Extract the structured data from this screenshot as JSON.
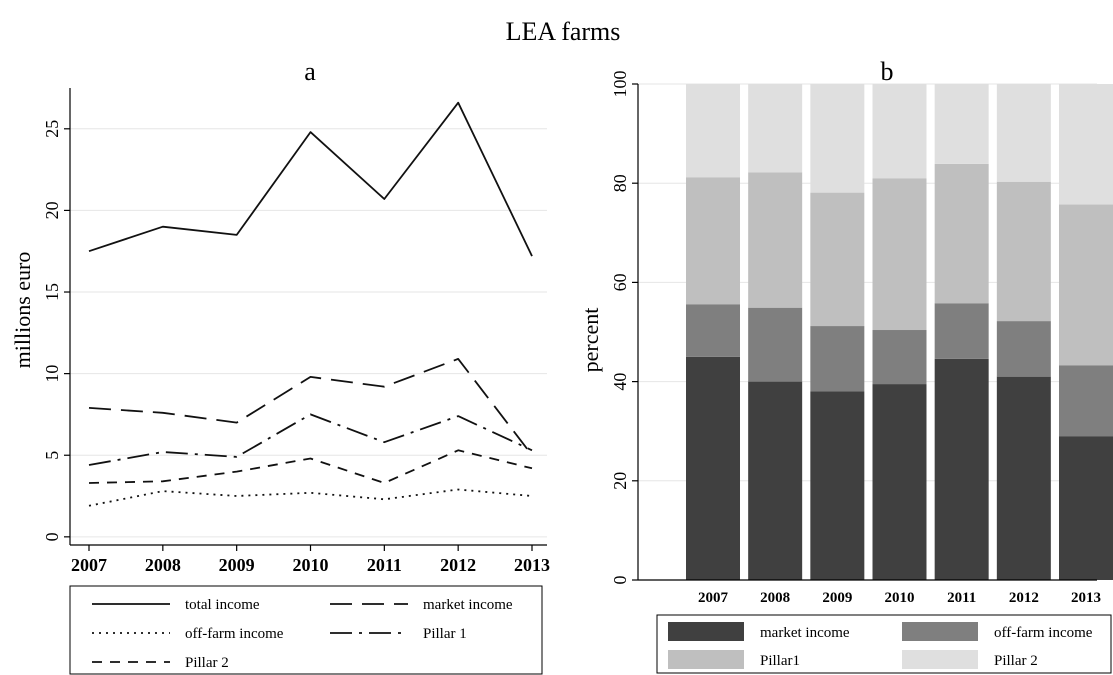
{
  "title": "LEA farms",
  "chart_data": [
    {
      "panel": "a",
      "type": "line",
      "ylabel": "millions euro",
      "xlabel": "",
      "x": [
        "2007",
        "2008",
        "2009",
        "2010",
        "2011",
        "2012",
        "2013"
      ],
      "ylim": [
        -0.5,
        27.5
      ],
      "yticks": [
        0,
        5,
        10,
        15,
        20,
        25
      ],
      "grid": true,
      "series": [
        {
          "name": "total income",
          "dash": "solid",
          "values": [
            17.5,
            19.0,
            18.5,
            24.8,
            20.7,
            26.6,
            17.2
          ]
        },
        {
          "name": "market income",
          "dash": "long-dash",
          "values": [
            7.9,
            7.6,
            7.0,
            9.8,
            9.2,
            10.9,
            5.0
          ]
        },
        {
          "name": "off-farm income",
          "dash": "dot",
          "values": [
            1.9,
            2.8,
            2.5,
            2.7,
            2.3,
            2.9,
            2.5
          ]
        },
        {
          "name": "Pillar 1",
          "dash": "dash-dot",
          "values": [
            4.4,
            5.2,
            4.9,
            7.5,
            5.8,
            7.4,
            5.3
          ]
        },
        {
          "name": "Pillar 2",
          "dash": "short-dash",
          "values": [
            3.3,
            3.4,
            4.0,
            4.8,
            3.3,
            5.3,
            4.2
          ]
        }
      ],
      "legend": {
        "placement": "bottom",
        "entries": [
          "total income",
          "market income",
          "off-farm income",
          "Pillar 1",
          "Pillar 2"
        ]
      }
    },
    {
      "panel": "b",
      "type": "bar",
      "stacked": true,
      "ylabel": "percent",
      "xlabel": "",
      "categories": [
        "2007",
        "2008",
        "2009",
        "2010",
        "2011",
        "2012",
        "2013"
      ],
      "ylim": [
        0,
        100
      ],
      "yticks": [
        0,
        20,
        40,
        60,
        80,
        100
      ],
      "grid": true,
      "series": [
        {
          "name": "market income",
          "color": "#404040",
          "values": [
            45.0,
            40.0,
            38.0,
            39.5,
            44.6,
            41.0,
            29.0
          ]
        },
        {
          "name": "off-farm income",
          "color": "#7f7f7f",
          "values": [
            10.6,
            14.9,
            13.2,
            10.9,
            11.2,
            11.2,
            14.3
          ]
        },
        {
          "name": "Pillar1",
          "color": "#bfbfbf",
          "values": [
            25.6,
            27.3,
            26.9,
            30.6,
            28.1,
            28.1,
            32.4
          ]
        },
        {
          "name": "Pillar 2",
          "color": "#dfdfdf",
          "values": [
            18.8,
            17.8,
            21.9,
            19.0,
            16.1,
            19.7,
            24.3
          ]
        }
      ],
      "legend": {
        "placement": "bottom",
        "entries": [
          "market income",
          "off-farm income",
          "Pillar1",
          "Pillar 2"
        ]
      }
    }
  ]
}
